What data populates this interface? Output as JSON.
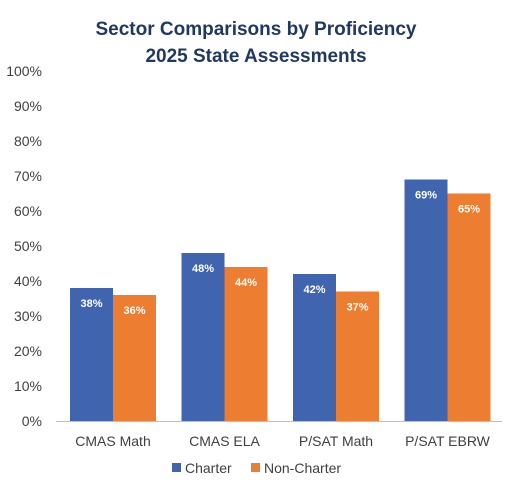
{
  "chart_data": {
    "type": "bar",
    "title": [
      "Sector Comparisons by Proficiency",
      "2025 State Assessments"
    ],
    "categories": [
      "CMAS Math",
      "CMAS ELA",
      "P/SAT Math",
      "P/SAT EBRW"
    ],
    "series": [
      {
        "name": "Charter",
        "color": "#4064ad",
        "values": [
          38,
          48,
          42,
          69
        ],
        "labels": [
          "38%",
          "48%",
          "42%",
          "69%"
        ]
      },
      {
        "name": "Non-Charter",
        "color": "#ed7d31",
        "values": [
          36,
          44,
          37,
          65
        ],
        "labels": [
          "36%",
          "44%",
          "37%",
          "65%"
        ]
      }
    ],
    "ylim": [
      0,
      100
    ],
    "yticks": [
      "0%",
      "10%",
      "20%",
      "30%",
      "40%",
      "50%",
      "60%",
      "70%",
      "80%",
      "90%",
      "100%"
    ],
    "grid": false,
    "legend": "bottom"
  }
}
